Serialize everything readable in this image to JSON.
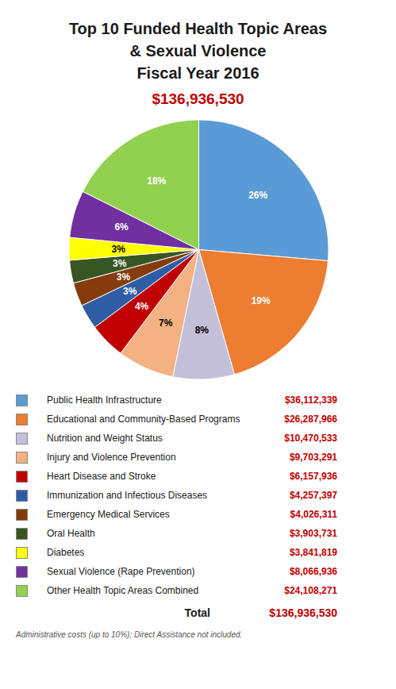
{
  "chart_data": {
    "type": "pie",
    "title": [
      "Top 10 Funded Health Topic Areas",
      "& Sexual Violence",
      "Fiscal Year 2016"
    ],
    "subtitle": "$136,936,530",
    "categories": [
      "Public Health Infrastructure",
      "Educational and Community-Based Programs",
      "Nutrition and Weight Status",
      "Injury and Violence Prevention",
      "Heart Disease and Stroke",
      "Immunization and Infectious Diseases",
      "Emergency Medical Services",
      "Oral Health",
      "Diabetes",
      "Sexual Violence (Rape Prevention)",
      "Other Health Topic Areas Combined"
    ],
    "values": [
      36112339,
      26287966,
      10470533,
      9703291,
      6157936,
      4257397,
      4026311,
      3903731,
      3841819,
      8066936,
      24108271
    ],
    "value_labels": [
      "$36,112,339",
      "$26,287,966",
      "$10,470,533",
      "$9,703,291",
      "$6,157,936",
      "$4,257,397",
      "$4,026,311",
      "$3,903,731",
      "$3,841,819",
      "$8,066,936",
      "$24,108,271"
    ],
    "shares": [
      26,
      19,
      8,
      7,
      4,
      3,
      3,
      3,
      3,
      6,
      18
    ],
    "share_labels": [
      "26%",
      "19%",
      "8%",
      "7%",
      "4%",
      "3%",
      "3%",
      "3%",
      "3%",
      "6%",
      "18%"
    ],
    "colors": [
      "#5B9BD5",
      "#ED7D31",
      "#C5C0DA",
      "#F4B183",
      "#C00000",
      "#2E5DA6",
      "#843C0C",
      "#375623",
      "#FFFF00",
      "#7030A0",
      "#92D050"
    ],
    "data_labels": true,
    "legend": "bottom",
    "amount_color": "#C00000",
    "total": {
      "label": "Total",
      "value": 136936530,
      "value_label": "$136,936,530"
    },
    "footnote": "Administrative costs (up to 10%); Direct Assistance not included."
  }
}
